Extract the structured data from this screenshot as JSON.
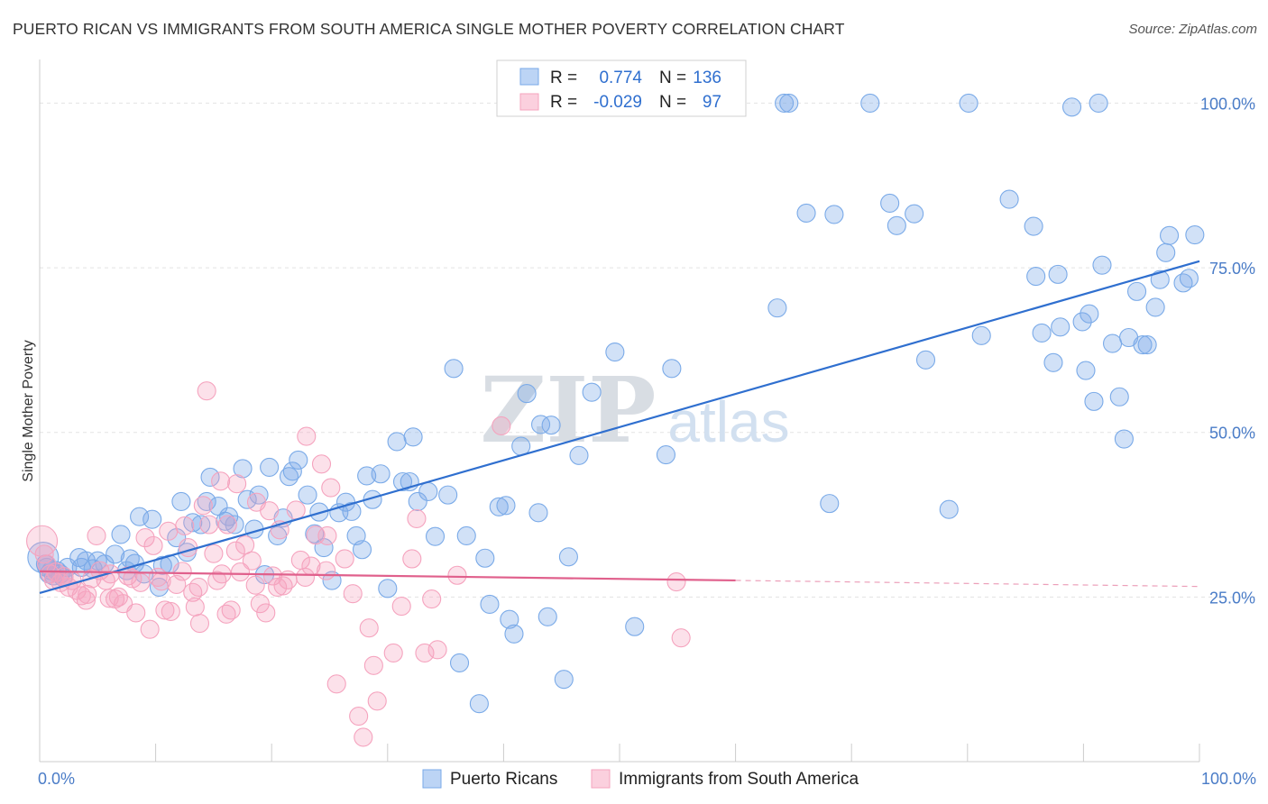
{
  "title": "PUERTO RICAN VS IMMIGRANTS FROM SOUTH AMERICA SINGLE MOTHER POVERTY CORRELATION CHART",
  "source": "Source: ZipAtlas.com",
  "watermark": {
    "zip": "ZIP",
    "atlas": "atlas"
  },
  "chart_data": {
    "type": "scatter",
    "title": "PUERTO RICAN VS IMMIGRANTS FROM SOUTH AMERICA SINGLE MOTHER POVERTY CORRELATION CHART",
    "xlabel": "",
    "ylabel": "Single Mother Poverty",
    "xlim": [
      0,
      100
    ],
    "ylim": [
      0,
      100
    ],
    "x_tick_labels": [
      {
        "value": 0,
        "label": "0.0%"
      },
      {
        "value": 100,
        "label": "100.0%"
      }
    ],
    "y_tick_labels": [
      {
        "value": 25,
        "label": "25.0%"
      },
      {
        "value": 50,
        "label": "50.0%"
      },
      {
        "value": 75,
        "label": "75.0%"
      },
      {
        "value": 100,
        "label": "100.0%"
      }
    ],
    "grid": true,
    "legend_position": "bottom",
    "stats_box": [
      {
        "r_label": "R =",
        "r_value": "0.774",
        "n_label": "N =",
        "n_value": "136"
      },
      {
        "r_label": "R =",
        "r_value": "-0.029",
        "n_label": "N =",
        "n_value": "97"
      }
    ],
    "series": [
      {
        "name": "Puerto Ricans",
        "color": "#7aaae8",
        "line_color": "#2f6fcf",
        "trend": {
          "x": [
            0,
            100
          ],
          "y": [
            25.6,
            76.0
          ],
          "dashed_from": null
        },
        "points": [
          [
            0.3,
            31
          ],
          [
            0.5,
            30
          ],
          [
            0.6,
            29.5
          ],
          [
            0.8,
            28.5
          ],
          [
            1.0,
            29
          ],
          [
            1.2,
            28.2
          ],
          [
            1.5,
            29
          ],
          [
            1.8,
            28.5
          ],
          [
            2.0,
            28
          ],
          [
            2.4,
            29.5
          ],
          [
            3.4,
            31
          ],
          [
            3.6,
            29.5
          ],
          [
            4.0,
            30.5
          ],
          [
            4.6,
            29.3
          ],
          [
            5.0,
            30.5
          ],
          [
            5.6,
            30.0
          ],
          [
            6.5,
            31.5
          ],
          [
            7.0,
            34.5
          ],
          [
            7.5,
            29.0
          ],
          [
            7.8,
            30.8
          ],
          [
            8.2,
            30.1
          ],
          [
            8.6,
            37.2
          ],
          [
            9.0,
            28.5
          ],
          [
            9.7,
            36.8
          ],
          [
            10.3,
            26.5
          ],
          [
            10.6,
            29.8
          ],
          [
            11.2,
            30.0
          ],
          [
            11.8,
            34.0
          ],
          [
            12.2,
            39.5
          ],
          [
            12.7,
            31.8
          ],
          [
            13.2,
            36.3
          ],
          [
            13.9,
            36.0
          ],
          [
            14.4,
            39.5
          ],
          [
            14.7,
            43.2
          ],
          [
            15.4,
            38.8
          ],
          [
            16.0,
            36.5
          ],
          [
            16.3,
            37.2
          ],
          [
            16.8,
            36.0
          ],
          [
            17.5,
            44.5
          ],
          [
            17.9,
            39.8
          ],
          [
            18.5,
            35.3
          ],
          [
            18.9,
            40.5
          ],
          [
            19.4,
            28.4
          ],
          [
            19.8,
            44.7
          ],
          [
            20.5,
            34.3
          ],
          [
            21.0,
            37.0
          ],
          [
            21.5,
            43.3
          ],
          [
            21.8,
            44.1
          ],
          [
            22.3,
            45.8
          ],
          [
            23.1,
            40.5
          ],
          [
            23.7,
            34.6
          ],
          [
            24.1,
            37.9
          ],
          [
            24.5,
            32.5
          ],
          [
            25.2,
            27.5
          ],
          [
            25.8,
            37.8
          ],
          [
            26.4,
            39.4
          ],
          [
            26.9,
            38.0
          ],
          [
            27.3,
            34.3
          ],
          [
            27.8,
            32.2
          ],
          [
            28.2,
            43.4
          ],
          [
            28.7,
            39.8
          ],
          [
            29.4,
            43.7
          ],
          [
            30.0,
            26.3
          ],
          [
            30.8,
            48.6
          ],
          [
            31.3,
            42.5
          ],
          [
            31.9,
            42.5
          ],
          [
            32.2,
            49.3
          ],
          [
            32.6,
            39.5
          ],
          [
            33.5,
            41.0
          ],
          [
            34.1,
            34.2
          ],
          [
            35.2,
            40.5
          ],
          [
            35.7,
            59.7
          ],
          [
            36.2,
            15.0
          ],
          [
            36.8,
            34.3
          ],
          [
            37.9,
            8.8
          ],
          [
            38.4,
            30.9
          ],
          [
            38.8,
            23.9
          ],
          [
            39.6,
            38.7
          ],
          [
            40.2,
            38.9
          ],
          [
            40.5,
            21.6
          ],
          [
            40.9,
            19.4
          ],
          [
            41.5,
            47.9
          ],
          [
            42.0,
            55.9
          ],
          [
            43.0,
            37.8
          ],
          [
            43.8,
            22.0
          ],
          [
            44.1,
            51.1
          ],
          [
            43.2,
            51.2
          ],
          [
            45.2,
            12.5
          ],
          [
            45.6,
            31.1
          ],
          [
            46.5,
            46.5
          ],
          [
            47.6,
            56.1
          ],
          [
            49.6,
            62.2
          ],
          [
            51.3,
            20.5
          ],
          [
            54.0,
            46.6
          ],
          [
            54.5,
            59.7
          ],
          [
            63.6,
            68.9
          ],
          [
            64.2,
            100.0
          ],
          [
            64.6,
            100.0
          ],
          [
            66.1,
            83.3
          ],
          [
            68.1,
            39.2
          ],
          [
            68.5,
            83.1
          ],
          [
            71.6,
            100.0
          ],
          [
            73.3,
            84.8
          ],
          [
            73.9,
            81.4
          ],
          [
            75.4,
            83.2
          ],
          [
            76.4,
            61.0
          ],
          [
            78.4,
            38.3
          ],
          [
            80.1,
            100.0
          ],
          [
            81.2,
            64.7
          ],
          [
            83.6,
            85.4
          ],
          [
            85.7,
            81.3
          ],
          [
            85.9,
            73.7
          ],
          [
            86.4,
            65.1
          ],
          [
            87.4,
            60.6
          ],
          [
            87.8,
            74.0
          ],
          [
            88.0,
            66.0
          ],
          [
            89.0,
            99.4
          ],
          [
            89.9,
            66.8
          ],
          [
            90.2,
            59.4
          ],
          [
            90.5,
            68.0
          ],
          [
            90.9,
            54.7
          ],
          [
            91.3,
            100.0
          ],
          [
            91.6,
            75.4
          ],
          [
            92.5,
            63.5
          ],
          [
            93.1,
            55.4
          ],
          [
            93.5,
            49.0
          ],
          [
            93.9,
            64.4
          ],
          [
            94.6,
            71.4
          ],
          [
            95.1,
            63.3
          ],
          [
            95.5,
            63.3
          ],
          [
            96.2,
            69.0
          ],
          [
            96.6,
            73.2
          ],
          [
            97.1,
            77.3
          ],
          [
            97.4,
            79.9
          ],
          [
            98.6,
            72.7
          ],
          [
            99.1,
            73.4
          ],
          [
            99.6,
            80.0
          ]
        ]
      },
      {
        "name": "Immigrants from South America",
        "color": "#f5a3be",
        "line_color": "#e0608c",
        "trend": {
          "x": [
            0,
            100
          ],
          "y": [
            28.9,
            26.6
          ],
          "dashed_from": 60
        },
        "points": [
          [
            0.2,
            33.5
          ],
          [
            0.4,
            31.5
          ],
          [
            0.6,
            30
          ],
          [
            0.9,
            28.5
          ],
          [
            1.2,
            27.5
          ],
          [
            1.4,
            28.8
          ],
          [
            1.8,
            27.2
          ],
          [
            2.1,
            28.1
          ],
          [
            2.5,
            26.5
          ],
          [
            2.8,
            27.5
          ],
          [
            3.2,
            26.0
          ],
          [
            3.6,
            25.2
          ],
          [
            4.0,
            24.5
          ],
          [
            4.5,
            27.8
          ],
          [
            4.9,
            34.3
          ],
          [
            5.2,
            29.0
          ],
          [
            5.7,
            27.5
          ],
          [
            6.1,
            28.5
          ],
          [
            6.5,
            24.7
          ],
          [
            6.8,
            25.0
          ],
          [
            7.2,
            24.0
          ],
          [
            7.6,
            28.2
          ],
          [
            8.0,
            27.8
          ],
          [
            8.3,
            22.6
          ],
          [
            8.7,
            27.2
          ],
          [
            9.1,
            34.0
          ],
          [
            9.5,
            20.1
          ],
          [
            9.8,
            32.8
          ],
          [
            10.2,
            28.0
          ],
          [
            10.5,
            27.4
          ],
          [
            10.8,
            23.0
          ],
          [
            11.3,
            22.8
          ],
          [
            11.8,
            26.9
          ],
          [
            12.3,
            28.9
          ],
          [
            12.8,
            32.5
          ],
          [
            13.2,
            25.7
          ],
          [
            13.4,
            23.5
          ],
          [
            13.8,
            21.0
          ],
          [
            14.1,
            38.9
          ],
          [
            14.6,
            36.0
          ],
          [
            15.0,
            31.6
          ],
          [
            15.3,
            27.5
          ],
          [
            15.7,
            28.5
          ],
          [
            16.1,
            22.4
          ],
          [
            16.5,
            23.0
          ],
          [
            16.9,
            32.0
          ],
          [
            17.3,
            28.8
          ],
          [
            17.7,
            32.9
          ],
          [
            18.3,
            30.5
          ],
          [
            18.6,
            26.8
          ],
          [
            19.0,
            24.0
          ],
          [
            19.5,
            22.6
          ],
          [
            20.1,
            28.2
          ],
          [
            20.5,
            26.5
          ],
          [
            21.0,
            26.7
          ],
          [
            21.4,
            27.6
          ],
          [
            22.1,
            38.2
          ],
          [
            22.5,
            30.6
          ],
          [
            22.9,
            28.0
          ],
          [
            23.4,
            29.7
          ],
          [
            23.8,
            34.4
          ],
          [
            24.3,
            45.2
          ],
          [
            24.7,
            29.0
          ],
          [
            25.1,
            41.6
          ],
          [
            25.6,
            11.8
          ],
          [
            26.3,
            30.8
          ],
          [
            27.0,
            25.5
          ],
          [
            27.5,
            6.9
          ],
          [
            27.9,
            3.7
          ],
          [
            28.4,
            20.3
          ],
          [
            28.8,
            14.6
          ],
          [
            29.1,
            9.2
          ],
          [
            30.5,
            16.5
          ],
          [
            31.2,
            23.6
          ],
          [
            32.1,
            30.8
          ],
          [
            32.5,
            36.9
          ],
          [
            33.2,
            16.5
          ],
          [
            33.8,
            24.7
          ],
          [
            34.3,
            17.0
          ],
          [
            36.0,
            28.3
          ],
          [
            39.8,
            51.0
          ],
          [
            54.9,
            27.3
          ],
          [
            55.3,
            18.8
          ],
          [
            14.4,
            56.3
          ],
          [
            23.0,
            49.4
          ],
          [
            15.6,
            42.6
          ],
          [
            17.0,
            42.2
          ],
          [
            18.7,
            39.4
          ],
          [
            19.8,
            38.1
          ],
          [
            12.5,
            35.8
          ],
          [
            11.1,
            35.0
          ],
          [
            16.2,
            36.0
          ],
          [
            20.7,
            35.2
          ],
          [
            24.8,
            34.3
          ],
          [
            13.7,
            26.5
          ],
          [
            6.0,
            24.8
          ],
          [
            4.1,
            25.4
          ]
        ]
      }
    ]
  }
}
